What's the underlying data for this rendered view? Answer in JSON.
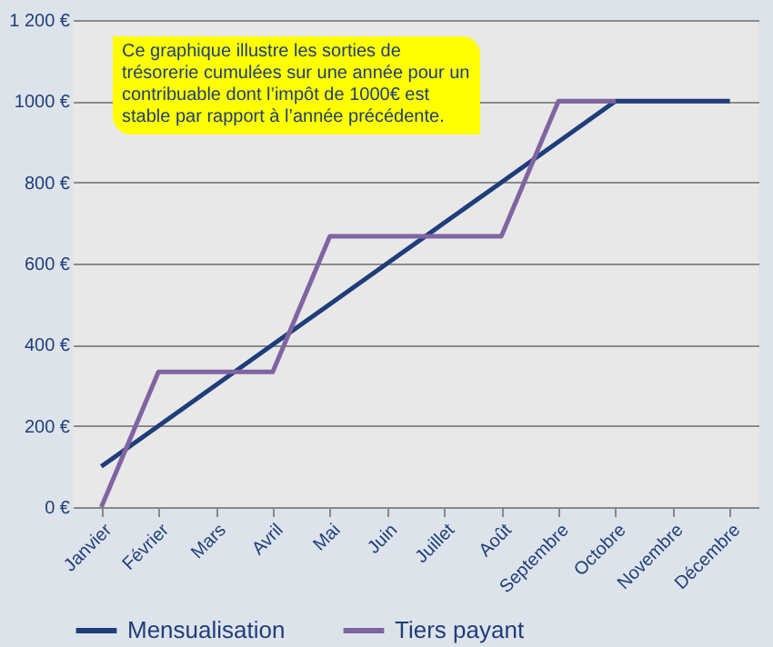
{
  "chart_data": {
    "type": "line",
    "categories": [
      "Janvier",
      "Février",
      "Mars",
      "Avril",
      "Mai",
      "Juin",
      "Juillet",
      "Août",
      "Septembre",
      "Octobre",
      "Novembre",
      "Décembre"
    ],
    "series": [
      {
        "name": "Mensualisation",
        "color": "#1f3d7a",
        "values": [
          100,
          200,
          300,
          400,
          500,
          600,
          700,
          800,
          900,
          1000,
          1000,
          1000
        ]
      },
      {
        "name": "Tiers payant",
        "color": "#8064a2",
        "values": [
          0,
          333,
          333,
          333,
          667,
          667,
          667,
          667,
          1000,
          1000,
          null,
          null
        ]
      }
    ],
    "ylim": [
      0,
      1200
    ],
    "yticks": [
      {
        "value": 0,
        "label": "0 €"
      },
      {
        "value": 200,
        "label": "200 €"
      },
      {
        "value": 400,
        "label": "400 €"
      },
      {
        "value": 600,
        "label": "600 €"
      },
      {
        "value": 800,
        "label": "800 €"
      },
      {
        "value": 1000,
        "label": "1000 €"
      },
      {
        "value": 1200,
        "label": "1 200 €"
      }
    ],
    "grid": "y",
    "legend": "bottom",
    "marker": "none",
    "line_style": "solid",
    "annotations": [
      "Ce graphique illustre les sorties de trésorerie cumulées sur une année pour un contribuable dont l’impôt de 1000€ est stable par rapport à l’année précédente."
    ]
  }
}
